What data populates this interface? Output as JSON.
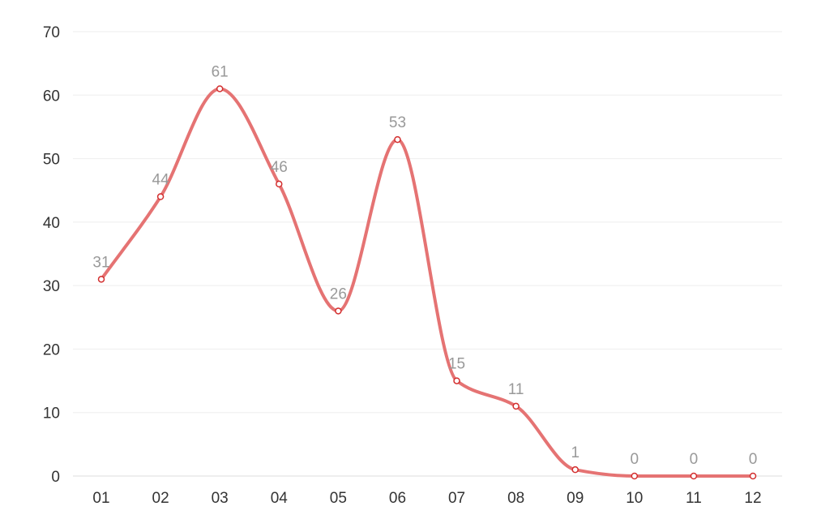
{
  "chart_data": {
    "type": "line",
    "smooth": true,
    "categories": [
      "01",
      "02",
      "03",
      "04",
      "05",
      "06",
      "07",
      "08",
      "09",
      "10",
      "11",
      "12"
    ],
    "series": [
      {
        "values": [
          31,
          44,
          61,
          46,
          26,
          53,
          15,
          11,
          1,
          0,
          0,
          0
        ]
      }
    ],
    "y_ticks": [
      "0",
      "10",
      "20",
      "30",
      "40",
      "50",
      "60",
      "70"
    ],
    "ylim": [
      0,
      70
    ],
    "title": "",
    "xlabel": "",
    "ylabel": "",
    "grid": true,
    "grid_axis": "y",
    "data_labels": true,
    "legend": "none"
  },
  "colors": {
    "line": "#e57373",
    "point_fill": "#ffffff",
    "point_stroke": "#d32f2f",
    "grid": "#eeeeee",
    "axis": "#dddddd",
    "tick_text": "#333333",
    "data_label_text": "#999999"
  }
}
